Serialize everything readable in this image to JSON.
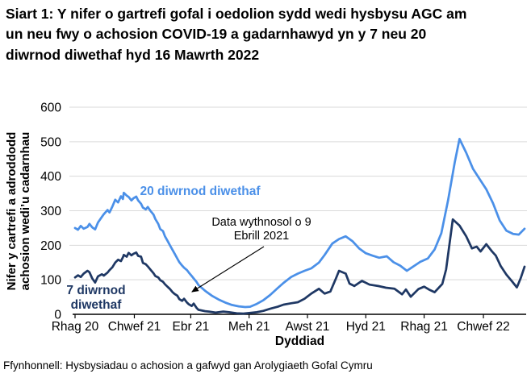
{
  "page": {
    "title": "Siart 1: Y nifer o gartrefi gofal i oedolion sydd wedi hysbysu AGC am un neu fwy o achosion COVID-19 a gadarnhawyd yn y 7 neu 20 diwrnod diwethaf hyd 16 Mawrth 2022",
    "source": "Ffynhonnell: Hysbysiadau o achosion a gafwyd gan Arolygiaeth Gofal Cymru"
  },
  "chart_data": {
    "type": "line",
    "title": "Siart 1: Y nifer o gartrefi gofal i oedolion sydd wedi hysbysu AGC am un neu fwy o achosion COVID-19 a gadarnhawyd yn y 7 neu 20 diwrnod diwethaf hyd 16 Mawrth 2022",
    "xlabel": "Dyddiad",
    "ylabel": "Nifer y cartrefi a adroddodd achosion wedi’u cadarnhau",
    "ylabel_lines": [
      "Nifer y cartrefi a adroddodd",
      "achosion wedi’u cadarnhau"
    ],
    "ylim": [
      0,
      600
    ],
    "y_ticks": [
      0,
      100,
      200,
      300,
      400,
      500,
      600
    ],
    "grid": "horizontal",
    "legend_position": "inline-labels",
    "x_axis": {
      "unit": "days since 1 Rhagfyr 2020, through 16 Mawrth 2022",
      "domain_days": [
        0,
        470
      ],
      "tick_days": [
        0,
        62,
        121,
        182,
        243,
        304,
        365,
        427
      ],
      "tick_labels": [
        "Rhag 20",
        "Chwef 21",
        "Ebr 21",
        "Meh 21",
        "Awst 21",
        "Hyd 21",
        "Rhag 21",
        "Chwef 22"
      ]
    },
    "annotation": {
      "lines": [
        "Data wythnosol o 9",
        "Ebrill 2021"
      ]
    },
    "colors": {
      "grid": "#d9d9d9",
      "axis": "#000000",
      "text": "#000000"
    },
    "series": [
      {
        "name": "20 diwrnod diwethaf",
        "color": "#4b90e8",
        "points": [
          [
            0,
            250
          ],
          [
            3,
            245
          ],
          [
            6,
            256
          ],
          [
            9,
            248
          ],
          [
            13,
            253
          ],
          [
            15,
            262
          ],
          [
            18,
            252
          ],
          [
            21,
            246
          ],
          [
            24,
            266
          ],
          [
            28,
            282
          ],
          [
            30,
            290
          ],
          [
            34,
            302
          ],
          [
            36,
            295
          ],
          [
            39,
            312
          ],
          [
            42,
            332
          ],
          [
            45,
            324
          ],
          [
            48,
            342
          ],
          [
            50,
            334
          ],
          [
            51,
            352
          ],
          [
            54,
            344
          ],
          [
            56,
            340
          ],
          [
            59,
            330
          ],
          [
            61,
            336
          ],
          [
            64,
            341
          ],
          [
            66,
            330
          ],
          [
            69,
            320
          ],
          [
            71,
            309
          ],
          [
            74,
            304
          ],
          [
            76,
            311
          ],
          [
            79,
            299
          ],
          [
            82,
            289
          ],
          [
            84,
            276
          ],
          [
            87,
            262
          ],
          [
            89,
            247
          ],
          [
            92,
            241
          ],
          [
            94,
            226
          ],
          [
            97,
            211
          ],
          [
            99,
            201
          ],
          [
            102,
            186
          ],
          [
            104,
            176
          ],
          [
            107,
            161
          ],
          [
            109,
            151
          ],
          [
            112,
            141
          ],
          [
            114,
            135
          ],
          [
            117,
            128
          ],
          [
            119,
            121
          ],
          [
            122,
            111
          ],
          [
            124,
            104
          ],
          [
            127,
            94
          ],
          [
            129,
            85
          ],
          [
            136,
            68
          ],
          [
            143,
            54
          ],
          [
            150,
            43
          ],
          [
            157,
            34
          ],
          [
            164,
            27
          ],
          [
            171,
            23
          ],
          [
            178,
            21
          ],
          [
            183,
            22
          ],
          [
            190,
            30
          ],
          [
            197,
            41
          ],
          [
            204,
            56
          ],
          [
            212,
            76
          ],
          [
            218,
            91
          ],
          [
            226,
            108
          ],
          [
            233,
            118
          ],
          [
            240,
            126
          ],
          [
            247,
            133
          ],
          [
            255,
            150
          ],
          [
            261,
            172
          ],
          [
            269,
            205
          ],
          [
            276,
            218
          ],
          [
            283,
            226
          ],
          [
            290,
            212
          ],
          [
            297,
            191
          ],
          [
            304,
            177
          ],
          [
            311,
            170
          ],
          [
            318,
            164
          ],
          [
            326,
            168
          ],
          [
            333,
            151
          ],
          [
            340,
            141
          ],
          [
            347,
            126
          ],
          [
            355,
            141
          ],
          [
            361,
            152
          ],
          [
            369,
            162
          ],
          [
            376,
            188
          ],
          [
            383,
            235
          ],
          [
            390,
            330
          ],
          [
            397,
            440
          ],
          [
            402,
            508
          ],
          [
            409,
            468
          ],
          [
            416,
            422
          ],
          [
            423,
            392
          ],
          [
            430,
            362
          ],
          [
            437,
            322
          ],
          [
            444,
            272
          ],
          [
            451,
            242
          ],
          [
            458,
            233
          ],
          [
            464,
            231
          ],
          [
            470,
            248
          ]
        ]
      },
      {
        "name": "7 diwrnod diwethaf",
        "color": "#1f3864",
        "points": [
          [
            0,
            107
          ],
          [
            3,
            113
          ],
          [
            6,
            108
          ],
          [
            9,
            118
          ],
          [
            13,
            126
          ],
          [
            15,
            122
          ],
          [
            18,
            104
          ],
          [
            21,
            92
          ],
          [
            24,
            110
          ],
          [
            28,
            116
          ],
          [
            30,
            112
          ],
          [
            34,
            121
          ],
          [
            36,
            128
          ],
          [
            39,
            136
          ],
          [
            42,
            150
          ],
          [
            45,
            158
          ],
          [
            48,
            154
          ],
          [
            50,
            165
          ],
          [
            51,
            172
          ],
          [
            54,
            167
          ],
          [
            56,
            178
          ],
          [
            59,
            171
          ],
          [
            61,
            175
          ],
          [
            64,
            179
          ],
          [
            66,
            169
          ],
          [
            69,
            167
          ],
          [
            71,
            149
          ],
          [
            74,
            145
          ],
          [
            76,
            139
          ],
          [
            79,
            129
          ],
          [
            82,
            119
          ],
          [
            84,
            111
          ],
          [
            87,
            107
          ],
          [
            89,
            99
          ],
          [
            92,
            94
          ],
          [
            94,
            87
          ],
          [
            97,
            79
          ],
          [
            99,
            74
          ],
          [
            102,
            64
          ],
          [
            104,
            59
          ],
          [
            107,
            54
          ],
          [
            109,
            44
          ],
          [
            112,
            39
          ],
          [
            114,
            45
          ],
          [
            117,
            34
          ],
          [
            119,
            29
          ],
          [
            122,
            24
          ],
          [
            124,
            31
          ],
          [
            127,
            19
          ],
          [
            129,
            13
          ],
          [
            136,
            9
          ],
          [
            140,
            8
          ],
          [
            147,
            5
          ],
          [
            155,
            8
          ],
          [
            161,
            6
          ],
          [
            169,
            3
          ],
          [
            176,
            2
          ],
          [
            183,
            4
          ],
          [
            190,
            6
          ],
          [
            197,
            10
          ],
          [
            204,
            16
          ],
          [
            212,
            22
          ],
          [
            218,
            28
          ],
          [
            226,
            32
          ],
          [
            233,
            35
          ],
          [
            240,
            45
          ],
          [
            247,
            60
          ],
          [
            255,
            74
          ],
          [
            261,
            60
          ],
          [
            267,
            66
          ],
          [
            273,
            105
          ],
          [
            276,
            126
          ],
          [
            283,
            118
          ],
          [
            287,
            89
          ],
          [
            292,
            82
          ],
          [
            300,
            97
          ],
          [
            308,
            86
          ],
          [
            317,
            82
          ],
          [
            325,
            77
          ],
          [
            334,
            74
          ],
          [
            342,
            58
          ],
          [
            346,
            72
          ],
          [
            351,
            51
          ],
          [
            359,
            73
          ],
          [
            365,
            80
          ],
          [
            370,
            72
          ],
          [
            376,
            64
          ],
          [
            384,
            88
          ],
          [
            388,
            130
          ],
          [
            395,
            275
          ],
          [
            402,
            257
          ],
          [
            409,
            226
          ],
          [
            415,
            191
          ],
          [
            420,
            196
          ],
          [
            424,
            182
          ],
          [
            430,
            203
          ],
          [
            436,
            182
          ],
          [
            440,
            170
          ],
          [
            445,
            140
          ],
          [
            451,
            115
          ],
          [
            457,
            95
          ],
          [
            462,
            78
          ],
          [
            466,
            105
          ],
          [
            470,
            138
          ]
        ]
      }
    ]
  }
}
